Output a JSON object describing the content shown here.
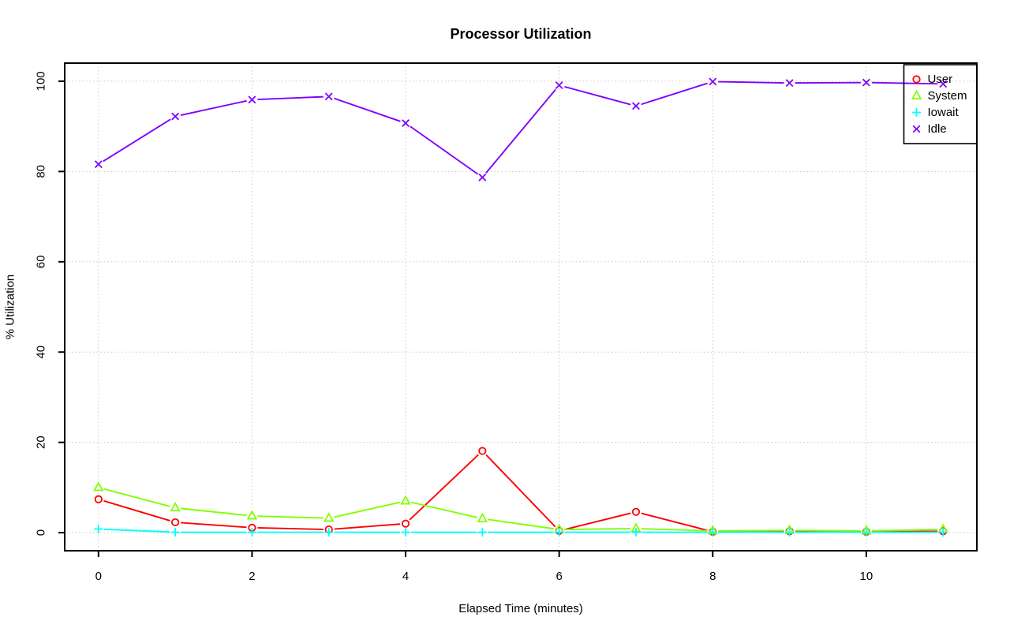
{
  "chart_data": {
    "type": "line",
    "title": "Processor Utilization",
    "xlabel": "Elapsed Time (minutes)",
    "ylabel": "% Utilization",
    "x": [
      0,
      1,
      2,
      3,
      4,
      5,
      6,
      7,
      8,
      9,
      10,
      11
    ],
    "series": [
      {
        "name": "User",
        "color": "#ff0000",
        "marker": "circle",
        "values": [
          7.4,
          2.3,
          1.1,
          0.7,
          2.0,
          18.1,
          0.4,
          4.6,
          0.2,
          0.3,
          0.2,
          0.3
        ]
      },
      {
        "name": "System",
        "color": "#80ff00",
        "marker": "triangle",
        "values": [
          10.0,
          5.5,
          3.7,
          3.2,
          7.0,
          3.1,
          0.7,
          0.9,
          0.4,
          0.5,
          0.4,
          0.7
        ]
      },
      {
        "name": "Iowait",
        "color": "#00ffff",
        "marker": "plus",
        "values": [
          0.8,
          0.1,
          0.1,
          0.1,
          0.1,
          0.1,
          0.1,
          0.1,
          0.1,
          0.1,
          0.1,
          0.1
        ]
      },
      {
        "name": "Idle",
        "color": "#8000ff",
        "marker": "x",
        "values": [
          81.6,
          92.2,
          95.9,
          96.6,
          90.7,
          78.7,
          99.1,
          94.5,
          99.9,
          99.6,
          99.7,
          99.4
        ]
      }
    ],
    "xlim": [
      -0.44,
      11.44
    ],
    "ylim": [
      -4,
      104
    ],
    "xticks": [
      0,
      2,
      4,
      6,
      8,
      10
    ],
    "yticks": [
      0,
      20,
      40,
      60,
      80,
      100
    ],
    "grid": true,
    "grid_color": "#c8c8c8",
    "axis_color": "#000000",
    "legend": {
      "position": "top-right",
      "entries": [
        "User",
        "System",
        "Iowait",
        "Idle"
      ]
    }
  }
}
